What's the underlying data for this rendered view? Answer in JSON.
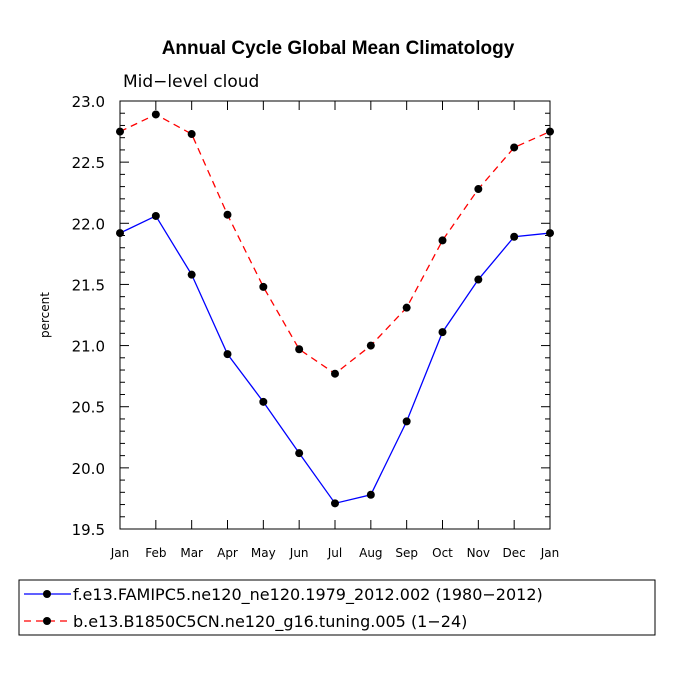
{
  "chart_data": {
    "type": "line",
    "title": "Annual Cycle Global Mean Climatology",
    "subtitle": "Mid−level cloud",
    "xlabel": "",
    "ylabel": "percent",
    "categories": [
      "Jan",
      "Feb",
      "Mar",
      "Apr",
      "May",
      "Jun",
      "Jul",
      "Aug",
      "Sep",
      "Oct",
      "Nov",
      "Dec",
      "Jan"
    ],
    "ylim": [
      19.5,
      23.0
    ],
    "yticks": [
      19.5,
      20.0,
      20.5,
      21.0,
      21.5,
      22.0,
      22.5,
      23.0
    ],
    "ytick_labels": [
      "19.5",
      "20.0",
      "20.5",
      "21.0",
      "21.5",
      "22.0",
      "22.5",
      "23.0"
    ],
    "grid": false,
    "legend_position": "bottom",
    "series": [
      {
        "name": "f.e13.FAMIPC5.ne120_ne120.1979_2012.002 (1980−2012)",
        "color": "#0000ff",
        "line_style": "solid",
        "marker": "circle",
        "values": [
          21.92,
          22.06,
          21.58,
          20.93,
          20.54,
          20.12,
          19.71,
          19.78,
          20.38,
          21.11,
          21.54,
          21.89,
          21.92
        ]
      },
      {
        "name": "b.e13.B1850C5CN.ne120_g16.tuning.005 (1−24)",
        "color": "#ff0000",
        "line_style": "dashed",
        "marker": "circle",
        "values": [
          22.75,
          22.89,
          22.73,
          22.07,
          21.48,
          20.97,
          20.77,
          21.0,
          21.31,
          21.86,
          22.28,
          22.62,
          22.75
        ]
      }
    ]
  }
}
